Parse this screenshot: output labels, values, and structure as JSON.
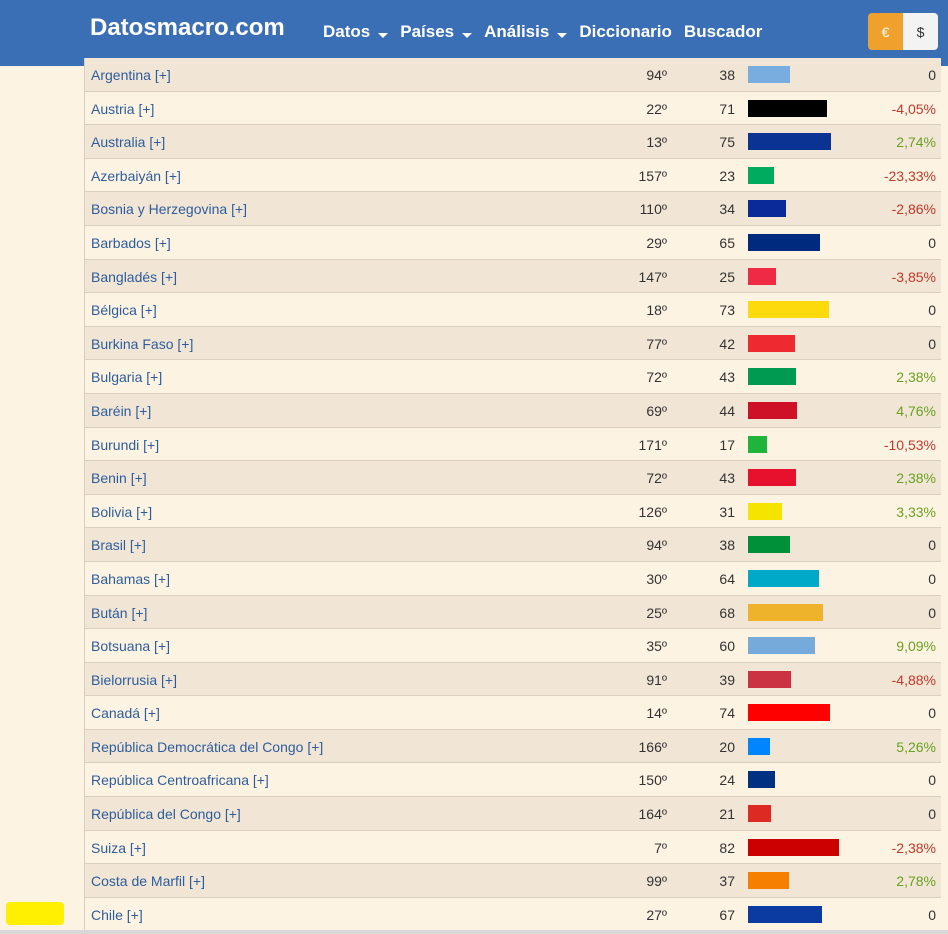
{
  "header": {
    "brand": "Datosmacro.com",
    "nav": [
      {
        "label": "Datos",
        "dropdown": true
      },
      {
        "label": "Países",
        "dropdown": true
      },
      {
        "label": "Análisis",
        "dropdown": true
      },
      {
        "label": "Diccionario",
        "dropdown": false
      },
      {
        "label": "Buscador",
        "dropdown": false
      }
    ],
    "currency": {
      "eur": "€",
      "usd": "$"
    }
  },
  "rows": [
    {
      "country": "Argentina [+]",
      "rank": "94º",
      "score": "38",
      "color": "#7aaddf",
      "change": "0"
    },
    {
      "country": "Austria [+]",
      "rank": "22º",
      "score": "71",
      "color": "#000000",
      "change": "-4,05%"
    },
    {
      "country": "Australia [+]",
      "rank": "13º",
      "score": "75",
      "color": "#0b3394",
      "change": "2,74%"
    },
    {
      "country": "Azerbaiyán [+]",
      "rank": "157º",
      "score": "23",
      "color": "#00aa5e",
      "change": "-23,33%"
    },
    {
      "country": "Bosnia y Herzegovina [+]",
      "rank": "110º",
      "score": "34",
      "color": "#0a2a9a",
      "change": "-2,86%"
    },
    {
      "country": "Barbados [+]",
      "rank": "29º",
      "score": "65",
      "color": "#002a7e",
      "change": "0"
    },
    {
      "country": "Bangladés [+]",
      "rank": "147º",
      "score": "25",
      "color": "#ee2a45",
      "change": "-3,85%"
    },
    {
      "country": "Bélgica [+]",
      "rank": "18º",
      "score": "73",
      "color": "#fdda0c",
      "change": "0"
    },
    {
      "country": "Burkina Faso [+]",
      "rank": "77º",
      "score": "42",
      "color": "#ee2a30",
      "change": "0"
    },
    {
      "country": "Bulgaria [+]",
      "rank": "72º",
      "score": "43",
      "color": "#009a50",
      "change": "2,38%"
    },
    {
      "country": "Baréin [+]",
      "rank": "69º",
      "score": "44",
      "color": "#ce1126",
      "change": "4,76%"
    },
    {
      "country": "Burundi [+]",
      "rank": "171º",
      "score": "17",
      "color": "#1eb53a",
      "change": "-10,53%"
    },
    {
      "country": "Benin [+]",
      "rank": "72º",
      "score": "43",
      "color": "#e8112d",
      "change": "2,38%"
    },
    {
      "country": "Bolivia [+]",
      "rank": "126º",
      "score": "31",
      "color": "#f4e400",
      "change": "3,33%"
    },
    {
      "country": "Brasil [+]",
      "rank": "94º",
      "score": "38",
      "color": "#009039",
      "change": "0"
    },
    {
      "country": "Bahamas [+]",
      "rank": "30º",
      "score": "64",
      "color": "#00a9c8",
      "change": "0"
    },
    {
      "country": "Bután [+]",
      "rank": "25º",
      "score": "68",
      "color": "#efb32b",
      "change": "0"
    },
    {
      "country": "Botsuana [+]",
      "rank": "35º",
      "score": "60",
      "color": "#75aadb",
      "change": "9,09%"
    },
    {
      "country": "Bielorrusia [+]",
      "rank": "91º",
      "score": "39",
      "color": "#cc3342",
      "change": "-4,88%"
    },
    {
      "country": "Canadá [+]",
      "rank": "14º",
      "score": "74",
      "color": "#ff0000",
      "change": "0"
    },
    {
      "country": "República Democrática del Congo [+]",
      "rank": "166º",
      "score": "20",
      "color": "#0085ff",
      "change": "5,26%"
    },
    {
      "country": "República Centroafricana [+]",
      "rank": "150º",
      "score": "24",
      "color": "#003082",
      "change": "0"
    },
    {
      "country": "República del Congo [+]",
      "rank": "164º",
      "score": "21",
      "color": "#dd2a23",
      "change": "0"
    },
    {
      "country": "Suiza [+]",
      "rank": "7º",
      "score": "82",
      "color": "#cc0000",
      "change": "-2,38%"
    },
    {
      "country": "Costa de Marfil [+]",
      "rank": "99º",
      "score": "37",
      "color": "#f77f00",
      "change": "2,78%"
    },
    {
      "country": "Chile [+]",
      "rank": "27º",
      "score": "67",
      "color": "#0b3ba1",
      "change": "0"
    }
  ]
}
